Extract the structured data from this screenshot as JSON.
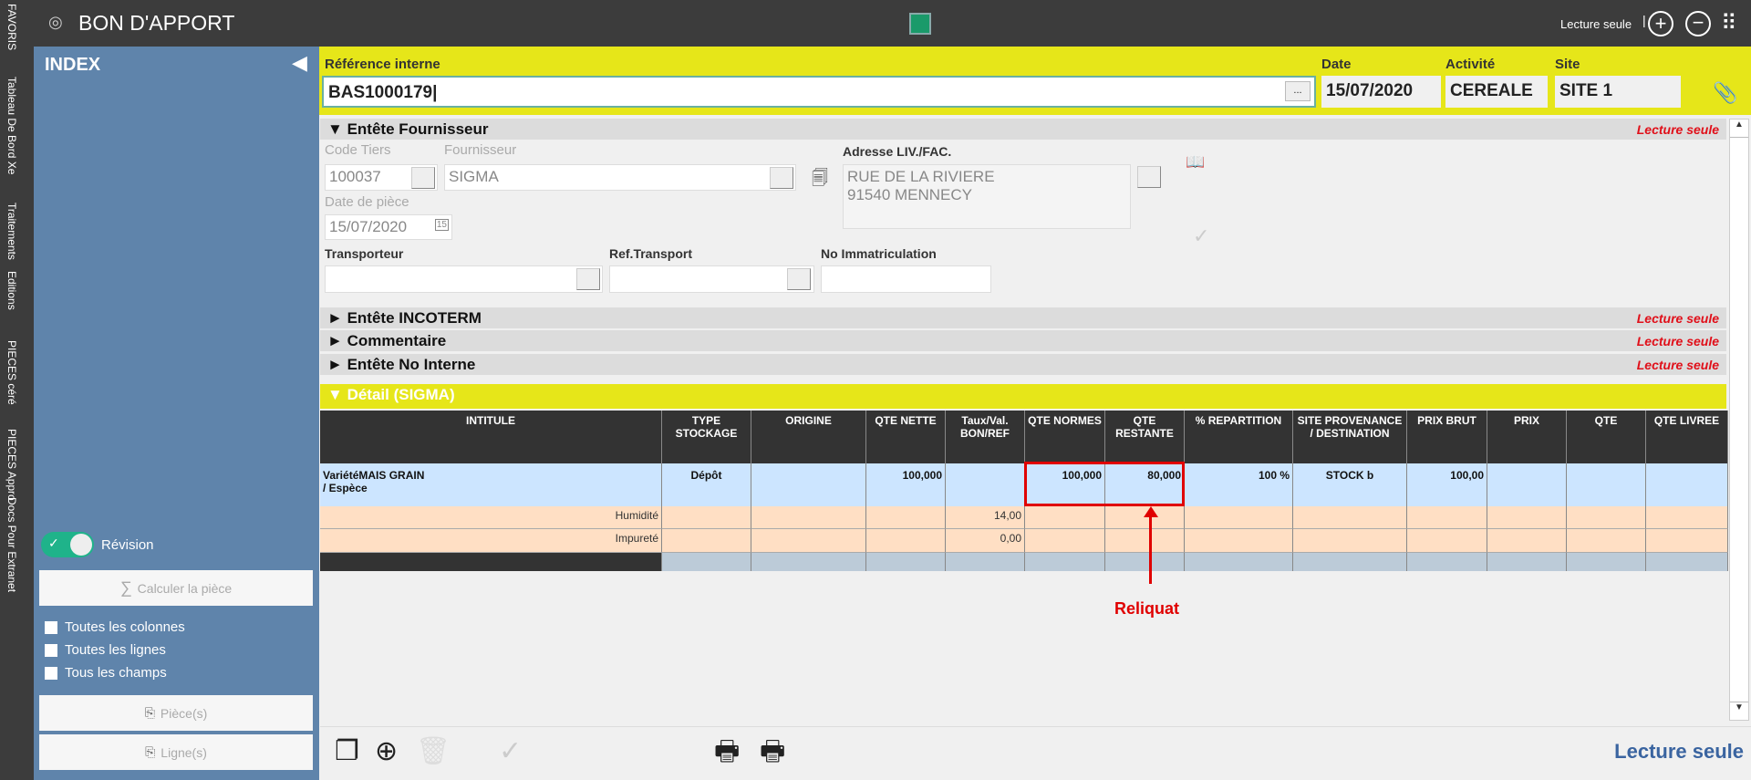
{
  "vnav": [
    "FAVORIS",
    "Tableau De Bord Xe",
    "Traitements",
    "Editions",
    "PIECES céré",
    "PIECES Appro",
    "Docs Pour Extranet"
  ],
  "title": {
    "text": "BON D'APPORT",
    "mode": "Lecture seule",
    "accent": "#1a9a6a"
  },
  "index": {
    "title": "INDEX",
    "revision": "Révision",
    "revision_on": true,
    "calc": "Calculer la pièce",
    "checks": [
      "Toutes les colonnes",
      "Toutes les lignes",
      "Tous les champs"
    ],
    "pieces": "Pièce(s)",
    "lignes": "Ligne(s)"
  },
  "head": {
    "ref_label": "Référence interne",
    "ref": "BAS1000179",
    "dots": "...",
    "date_label": "Date",
    "date": "15/07/2020",
    "act_label": "Activité",
    "act": "CEREALE",
    "site_label": "Site",
    "site": "SITE 1"
  },
  "fournisseur": {
    "title": "Entête Fournisseur",
    "ro": "Lecture seule",
    "code_label": "Code Tiers",
    "code": "100037",
    "four_label": "Fournisseur",
    "four": "SIGMA",
    "addr_label": "Adresse LIV./FAC.",
    "addr1": "RUE DE LA RIVIERE",
    "addr2": "91540  MENNECY",
    "datep_label": "Date de pièce",
    "datep": "15/07/2020",
    "transp_label": "Transporteur",
    "reft_label": "Ref.Transport",
    "immat_label": "No Immatriculation"
  },
  "sections": [
    {
      "title": "Entête INCOTERM",
      "ro": "Lecture seule"
    },
    {
      "title": "Commentaire",
      "ro": "Lecture seule"
    },
    {
      "title": "Entête No Interne",
      "ro": "Lecture seule"
    }
  ],
  "detail": {
    "title": "Détail (SIGMA)",
    "columns": [
      "INTITULE",
      "TYPE STOCKAGE",
      "ORIGINE",
      "QTE NETTE",
      "Taux/Val. BON/REF",
      "QTE NORMES",
      "QTE RESTANTE",
      "% REPARTITION",
      "SITE PROVENANCE / DESTINATION",
      "PRIX BRUT",
      "PRIX",
      "QTE",
      "QTE LIVREE"
    ],
    "rows": [
      [
        "VariétéMAIS GRAIN\n/ Espèce",
        "Dépôt",
        "",
        "100,000",
        "",
        "100,000",
        "80,000",
        "100 %",
        "STOCK b",
        "100,00",
        "",
        "",
        ""
      ],
      [
        "Humidité",
        "",
        "",
        "",
        "14,00",
        "",
        "",
        "",
        "",
        "",
        "",
        "",
        ""
      ],
      [
        "Impureté",
        "",
        "",
        "",
        "0,00",
        "",
        "",
        "",
        "",
        "",
        "",
        "",
        ""
      ]
    ]
  },
  "annotation": {
    "text": "Reliquat",
    "color": "#e00000"
  },
  "footer": {
    "mode": "Lecture seule"
  }
}
